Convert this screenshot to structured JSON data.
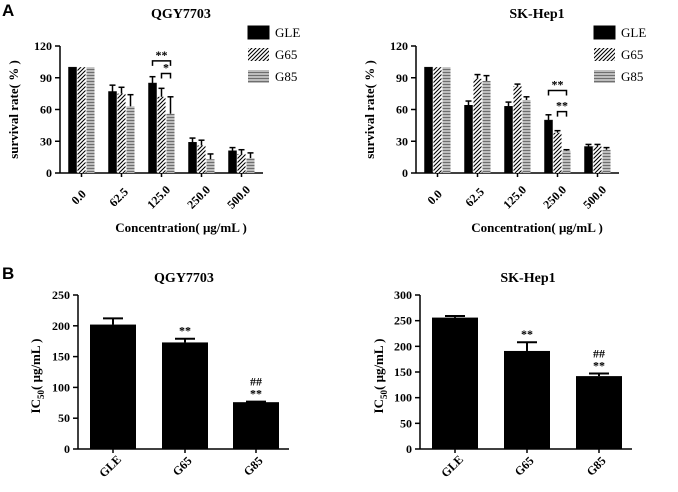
{
  "figure": {
    "panel_labels": [
      "A",
      "B"
    ],
    "series_styles": {
      "GLE": "solid",
      "G65": "diagonal-hatch",
      "G85": "horizontal-stripes"
    },
    "colors": {
      "bar": "#000000",
      "hatch_bg": "#ffffff",
      "stripe_bg": "#bdbdbd"
    }
  },
  "chart_data": [
    {
      "id": "A1",
      "type": "bar",
      "title": "QGY7703",
      "xlabel": "Concentration( μg/mL )",
      "ylabel": "survival rate( % )",
      "ylim": [
        0,
        120
      ],
      "yticks": [
        0,
        30,
        60,
        90,
        120
      ],
      "categories": [
        "0.0",
        "62.5",
        "125.0",
        "250.0",
        "500.0"
      ],
      "series": [
        {
          "name": "GLE",
          "values": [
            100,
            77,
            85,
            29,
            21
          ],
          "errors": [
            0,
            6,
            6,
            4,
            3
          ]
        },
        {
          "name": "G65",
          "values": [
            100,
            75,
            72,
            26,
            18
          ],
          "errors": [
            0,
            6,
            8,
            5,
            4
          ]
        },
        {
          "name": "G85",
          "values": [
            100,
            63,
            56,
            13,
            14
          ],
          "errors": [
            0,
            11,
            16,
            5,
            5
          ]
        }
      ],
      "legend": [
        "GLE",
        "G65",
        "G85"
      ],
      "legend_position": "top-right",
      "annotations": [
        {
          "text": "**",
          "category": "125.0",
          "from": "GLE",
          "to": "G85",
          "y": 106
        },
        {
          "text": "*",
          "category": "125.0",
          "from": "G65",
          "to": "G85",
          "y": 94
        }
      ]
    },
    {
      "id": "A2",
      "type": "bar",
      "title": "SK-Hep1",
      "xlabel": "Concentration( μg/mL )",
      "ylabel": "survival rate( % )",
      "ylim": [
        0,
        120
      ],
      "yticks": [
        0,
        30,
        60,
        90,
        120
      ],
      "categories": [
        "0.0",
        "62.5",
        "125.0",
        "250.0",
        "500.0"
      ],
      "series": [
        {
          "name": "GLE",
          "values": [
            100,
            64,
            63,
            50,
            25
          ],
          "errors": [
            0,
            4,
            4,
            5,
            2
          ]
        },
        {
          "name": "G65",
          "values": [
            100,
            89,
            82,
            38,
            25
          ],
          "errors": [
            0,
            4,
            2,
            2,
            2
          ]
        },
        {
          "name": "G85",
          "values": [
            100,
            87,
            69,
            21,
            22
          ],
          "errors": [
            0,
            5,
            3,
            1,
            2
          ]
        }
      ],
      "legend": [
        "GLE",
        "G65",
        "G85"
      ],
      "legend_position": "top-right",
      "annotations": [
        {
          "text": "**",
          "category": "250.0",
          "from": "GLE",
          "to": "G85",
          "y": 78
        },
        {
          "text": "**",
          "category": "250.0",
          "from": "G65",
          "to": "G85",
          "y": 58
        }
      ]
    },
    {
      "id": "B1",
      "type": "bar",
      "title": "QGY7703",
      "xlabel": "",
      "ylabel_main": "IC",
      "ylabel_sub": "50",
      "ylabel_tail": "( μg/mL )",
      "ylim": [
        0,
        250
      ],
      "yticks": [
        0,
        50,
        100,
        150,
        200,
        250
      ],
      "categories": [
        "GLE",
        "G65",
        "G85"
      ],
      "values": [
        202,
        173,
        76
      ],
      "errors": [
        10,
        6,
        1
      ],
      "sig_lines": [
        [],
        [
          "**"
        ],
        [
          "##",
          "**"
        ]
      ]
    },
    {
      "id": "B2",
      "type": "bar",
      "title": "SK-Hep1",
      "xlabel": "",
      "ylabel_main": "IC",
      "ylabel_sub": "50",
      "ylabel_tail": "( μg/mL )",
      "ylim": [
        0,
        300
      ],
      "yticks": [
        0,
        50,
        100,
        150,
        200,
        250,
        300
      ],
      "categories": [
        "GLE",
        "G65",
        "G85"
      ],
      "values": [
        256,
        191,
        142
      ],
      "errors": [
        3,
        17,
        5
      ],
      "sig_lines": [
        [],
        [
          "**"
        ],
        [
          "##",
          "**"
        ]
      ]
    }
  ]
}
